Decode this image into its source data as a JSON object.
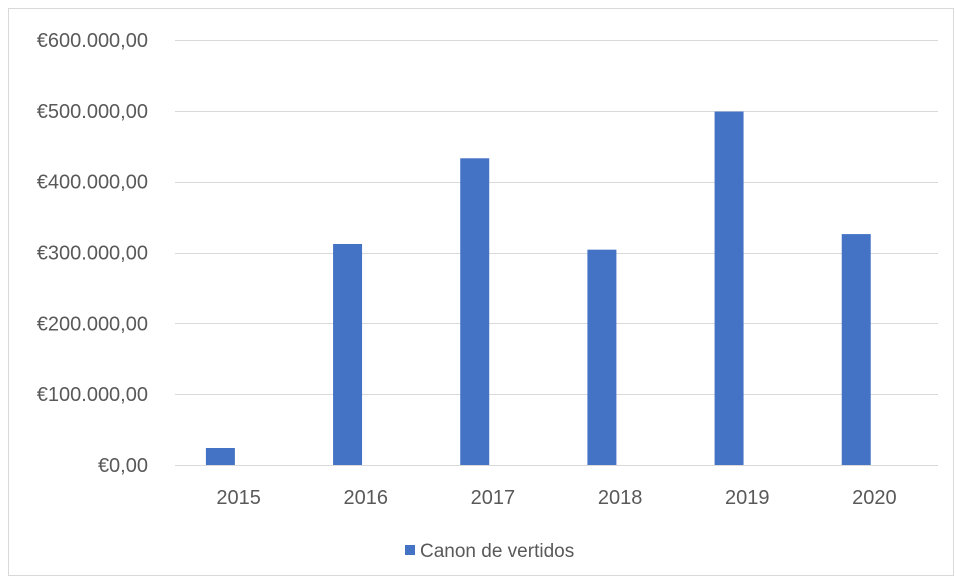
{
  "chart_data": {
    "type": "bar",
    "categories": [
      "2015",
      "2016",
      "2017",
      "2018",
      "2019",
      "2020"
    ],
    "series": [
      {
        "name": "Canon de vertidos",
        "values": [
          24000,
          312000,
          433000,
          304000,
          499000,
          326000
        ],
        "color": "#4472C4"
      }
    ],
    "ylim": [
      0,
      600000
    ],
    "y_ticks": [
      0,
      100000,
      200000,
      300000,
      400000,
      500000,
      600000
    ],
    "y_tick_labels": [
      "€0,00",
      "€100.000,00",
      "€200.000,00",
      "€300.000,00",
      "€400.000,00",
      "€500.000,00",
      "€600.000,00"
    ],
    "grid": true,
    "legend": "bottom",
    "gridline_color": "#D9D9D9"
  }
}
